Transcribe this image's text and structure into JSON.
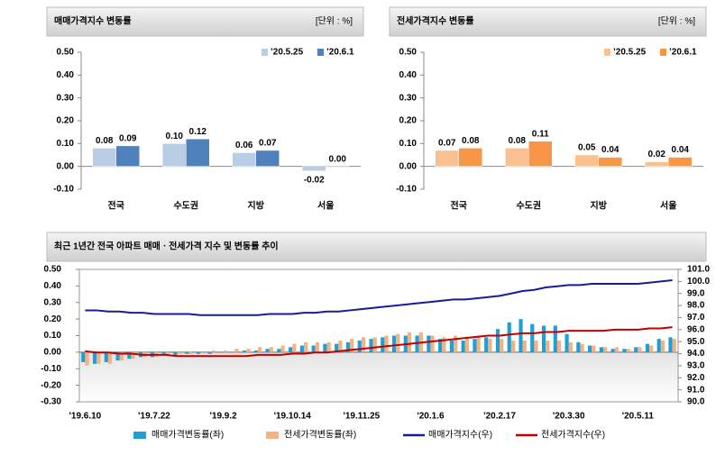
{
  "chart_data": [
    {
      "type": "bar",
      "title": "매매가격지수 변동률",
      "unit": "[단위 : %]",
      "categories": [
        "전국",
        "수도권",
        "지방",
        "서울"
      ],
      "series": [
        {
          "name": "’20.5.25",
          "color": "#b9cde5",
          "values": [
            0.08,
            0.1,
            0.06,
            -0.02
          ],
          "value_labels": [
            "0.08",
            "0.10",
            "0.06",
            "-0.02"
          ]
        },
        {
          "name": "’20.6.1",
          "color": "#4f81bd",
          "values": [
            0.09,
            0.12,
            0.07,
            0.0
          ],
          "value_labels": [
            "0.09",
            "0.12",
            "0.07",
            "0.00"
          ]
        }
      ],
      "ylim": [
        -0.1,
        0.5
      ],
      "yticks": [
        {
          "value": -0.1,
          "label": "-0.10"
        },
        {
          "value": 0.0,
          "label": "0.00"
        },
        {
          "value": 0.1,
          "label": "0.10"
        },
        {
          "value": 0.2,
          "label": "0.20"
        },
        {
          "value": 0.3,
          "label": "0.30"
        },
        {
          "value": 0.4,
          "label": "0.40"
        },
        {
          "value": 0.5,
          "label": "0.50"
        }
      ]
    },
    {
      "type": "bar",
      "title": "전세가격지수 변동률",
      "unit": "[단위 : %]",
      "categories": [
        "전국",
        "수도권",
        "지방",
        "서울"
      ],
      "series": [
        {
          "name": "’20.5.25",
          "color": "#fac090",
          "values": [
            0.07,
            0.08,
            0.05,
            0.02
          ],
          "value_labels": [
            "0.07",
            "0.08",
            "0.05",
            "0.02"
          ]
        },
        {
          "name": "’20.6.1",
          "color": "#f79646",
          "values": [
            0.08,
            0.11,
            0.04,
            0.04
          ],
          "value_labels": [
            "0.08",
            "0.11",
            "0.04",
            "0.04"
          ]
        }
      ],
      "ylim": [
        -0.1,
        0.5
      ],
      "yticks": [
        {
          "value": -0.1,
          "label": "-0.10"
        },
        {
          "value": 0.0,
          "label": "0.00"
        },
        {
          "value": 0.1,
          "label": "0.10"
        },
        {
          "value": 0.2,
          "label": "0.20"
        },
        {
          "value": 0.3,
          "label": "0.30"
        },
        {
          "value": 0.4,
          "label": "0.40"
        },
        {
          "value": 0.5,
          "label": "0.50"
        }
      ]
    },
    {
      "type": "combo",
      "title": "최근 1년간 전국 아파트 매매ㆍ전세가격 지수 및 변동률 추이",
      "categories": [
        "'19.6.10",
        null,
        null,
        null,
        null,
        null,
        "'19.7.22",
        null,
        null,
        null,
        null,
        null,
        "'19.9.2",
        null,
        null,
        null,
        null,
        null,
        "'19.10.14",
        null,
        null,
        null,
        null,
        null,
        "'19.11.25",
        null,
        null,
        null,
        null,
        null,
        "'20.1.6",
        null,
        null,
        null,
        null,
        null,
        "'20.2.17",
        null,
        null,
        null,
        null,
        null,
        "'20.3.30",
        null,
        null,
        null,
        null,
        null,
        "'20.5.11",
        null,
        null,
        null
      ],
      "series": [
        {
          "name": "매매가격변동률(좌)",
          "type": "bar",
          "color": "#1f9fd3",
          "values": [
            -0.06,
            -0.07,
            -0.06,
            -0.05,
            -0.04,
            -0.03,
            -0.03,
            -0.02,
            -0.02,
            -0.01,
            -0.01,
            -0.01,
            0.0,
            0.0,
            0.01,
            0.01,
            0.02,
            0.02,
            0.03,
            0.04,
            0.04,
            0.05,
            0.05,
            0.06,
            0.07,
            0.08,
            0.09,
            0.1,
            0.1,
            0.1,
            0.1,
            0.08,
            0.07,
            0.07,
            0.08,
            0.09,
            0.14,
            0.18,
            0.2,
            0.17,
            0.16,
            0.16,
            0.11,
            0.06,
            0.04,
            0.03,
            0.02,
            0.02,
            0.03,
            0.05,
            0.08,
            0.09
          ]
        },
        {
          "name": "전세가격변동률(좌)",
          "type": "bar",
          "color": "#f4b183",
          "values": [
            -0.08,
            -0.07,
            -0.07,
            -0.05,
            -0.04,
            -0.03,
            -0.03,
            -0.02,
            -0.01,
            -0.01,
            0.0,
            0.01,
            0.01,
            0.02,
            0.02,
            0.03,
            0.03,
            0.04,
            0.05,
            0.06,
            0.06,
            0.06,
            0.07,
            0.08,
            0.09,
            0.09,
            0.1,
            0.11,
            0.12,
            0.12,
            0.1,
            0.09,
            0.1,
            0.09,
            0.1,
            0.08,
            0.08,
            0.07,
            0.07,
            0.07,
            0.07,
            0.07,
            0.06,
            0.05,
            0.04,
            0.03,
            0.03,
            0.02,
            0.03,
            0.04,
            0.07,
            0.08
          ]
        },
        {
          "name": "매매가격지수(우)",
          "type": "line",
          "axis": "y2",
          "color": "#1a1a9c",
          "values": [
            97.6,
            97.6,
            97.5,
            97.5,
            97.4,
            97.4,
            97.3,
            97.3,
            97.3,
            97.3,
            97.2,
            97.2,
            97.2,
            97.2,
            97.2,
            97.2,
            97.3,
            97.3,
            97.3,
            97.4,
            97.4,
            97.5,
            97.5,
            97.6,
            97.7,
            97.8,
            97.9,
            98.0,
            98.1,
            98.2,
            98.3,
            98.4,
            98.5,
            98.5,
            98.6,
            98.7,
            98.8,
            99.0,
            99.2,
            99.3,
            99.5,
            99.6,
            99.7,
            99.7,
            99.8,
            99.8,
            99.8,
            99.8,
            99.8,
            99.9,
            100.0,
            100.1
          ]
        },
        {
          "name": "전세가격지수(우)",
          "type": "line",
          "axis": "y2",
          "color": "#c00000",
          "values": [
            94.2,
            94.1,
            94.1,
            94.0,
            94.0,
            93.9,
            93.9,
            93.9,
            93.8,
            93.8,
            93.8,
            93.8,
            93.8,
            93.8,
            93.8,
            93.9,
            93.9,
            93.9,
            94.0,
            94.0,
            94.1,
            94.1,
            94.2,
            94.3,
            94.4,
            94.5,
            94.6,
            94.7,
            94.8,
            94.9,
            95.0,
            95.1,
            95.2,
            95.3,
            95.4,
            95.5,
            95.5,
            95.6,
            95.7,
            95.7,
            95.8,
            95.8,
            95.9,
            95.9,
            95.9,
            95.9,
            96.0,
            96.0,
            96.0,
            96.1,
            96.1,
            96.2
          ]
        }
      ],
      "ylim": [
        -0.3,
        0.5
      ],
      "yticks": [
        {
          "value": -0.3,
          "label": "-0.30"
        },
        {
          "value": -0.2,
          "label": "-0.20"
        },
        {
          "value": -0.1,
          "label": "-0.10"
        },
        {
          "value": 0.0,
          "label": "0.00"
        },
        {
          "value": 0.1,
          "label": "0.10"
        },
        {
          "value": 0.2,
          "label": "0.20"
        },
        {
          "value": 0.3,
          "label": "0.30"
        },
        {
          "value": 0.4,
          "label": "0.40"
        },
        {
          "value": 0.5,
          "label": "0.50"
        }
      ],
      "y2lim": [
        90.0,
        101.0
      ],
      "y2ticks": [
        {
          "value": 90.0,
          "label": "90.0"
        },
        {
          "value": 91.0,
          "label": "91.0"
        },
        {
          "value": 92.0,
          "label": "92.0"
        },
        {
          "value": 93.0,
          "label": "93.0"
        },
        {
          "value": 94.0,
          "label": "94.0"
        },
        {
          "value": 95.0,
          "label": "95.0"
        },
        {
          "value": 96.0,
          "label": "96.0"
        },
        {
          "value": 97.0,
          "label": "97.0"
        },
        {
          "value": 98.0,
          "label": "98.0"
        },
        {
          "value": 99.0,
          "label": "99.0"
        },
        {
          "value": 100.0,
          "label": "100.0"
        },
        {
          "value": 101.0,
          "label": "101.0"
        }
      ]
    }
  ]
}
